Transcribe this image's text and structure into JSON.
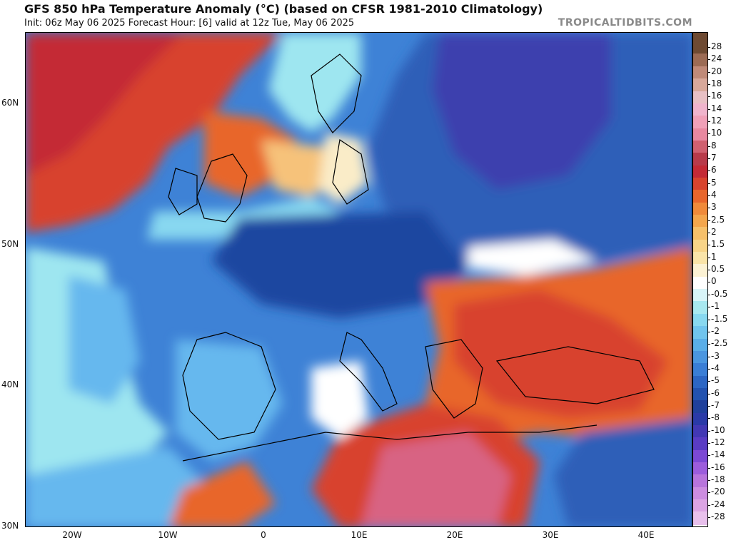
{
  "header": {
    "title": "GFS 850 hPa Temperature Anomaly (°C) (based on CFSR 1981-2010 Climatology)",
    "subtitle": "Init: 06z May 06 2025   Forecast Hour: [6]   valid at 12z Tue, May 06 2025",
    "watermark": "TROPICALTIDBITS.COM"
  },
  "map": {
    "lat_labels": [
      "60N",
      "50N",
      "40N",
      "30N"
    ],
    "lon_labels": [
      "20W",
      "10W",
      "0",
      "10E",
      "20E",
      "30E",
      "40E"
    ],
    "colors": {
      "deep_red": "#b8273a",
      "red": "#d8432e",
      "orange_red": "#e8662c",
      "orange": "#f09440",
      "light_orange": "#f6c27a",
      "pale": "#faecc8",
      "white": "#ffffff",
      "cyan": "#9ee6f0",
      "light_blue": "#66b8ee",
      "blue": "#3e82d6",
      "mid_blue": "#2f5fb8",
      "dark_blue": "#1f46a0",
      "purple_blue": "#3d3fae",
      "pink": "#d86483"
    }
  },
  "colorbar": {
    "labels": [
      "28",
      "24",
      "20",
      "18",
      "16",
      "14",
      "12",
      "10",
      "8",
      "7",
      "6",
      "5",
      "4",
      "3",
      "2.5",
      "2",
      "1.5",
      "1",
      "0.5",
      "0",
      "-0.5",
      "-1",
      "-1.5",
      "-2",
      "-2.5",
      "-3",
      "-4",
      "-5",
      "-6",
      "-7",
      "-8",
      "-10",
      "-12",
      "-14",
      "-16",
      "-18",
      "-20",
      "-24",
      "-28"
    ],
    "colors": [
      "#6e4a32",
      "#9c6b54",
      "#c08a78",
      "#d8a89a",
      "#e8c0c4",
      "#f0b4cc",
      "#f0a0b8",
      "#e888a0",
      "#d06070",
      "#b83a4a",
      "#c42a36",
      "#d8432e",
      "#e8662c",
      "#f08a3a",
      "#f4a64c",
      "#f6c06a",
      "#f8d488",
      "#fae4a8",
      "#fcf2d4",
      "#ffffff",
      "#d8f4f8",
      "#a8e8f0",
      "#88d8f0",
      "#70c4ee",
      "#5aaee8",
      "#4a96e0",
      "#3a7ed6",
      "#2c66c4",
      "#2252b0",
      "#20409c",
      "#2a3aa8",
      "#4238b4",
      "#5a3cc4",
      "#7c48d4",
      "#9c5cdc",
      "#b874dc",
      "#cc8ce0",
      "#dca4e4",
      "#e8c0ec"
    ]
  }
}
